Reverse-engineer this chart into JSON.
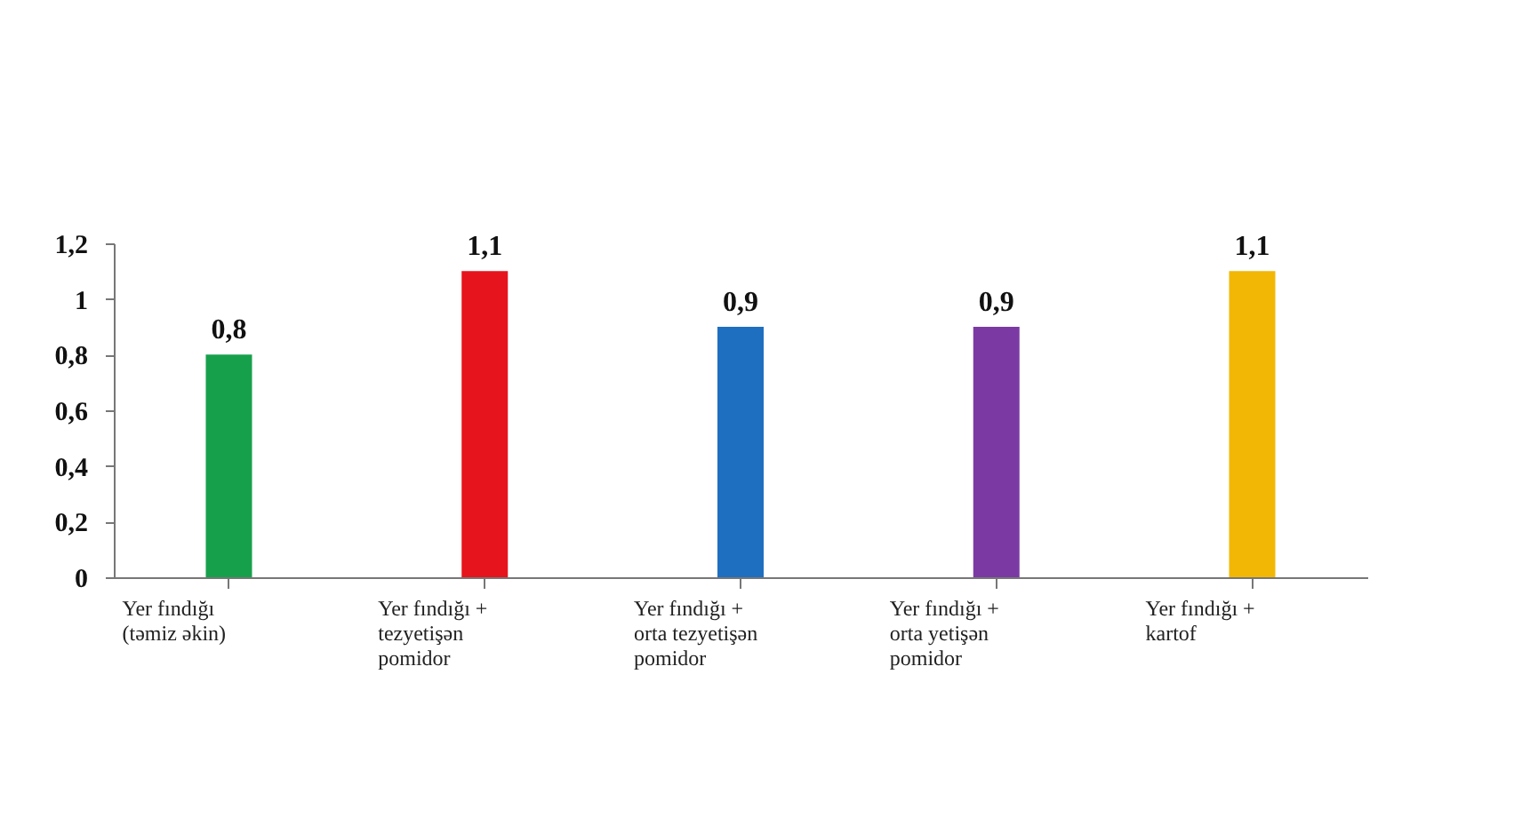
{
  "chart_data": {
    "type": "bar",
    "categories": [
      "Yer fındığı (təmiz əkin)",
      "Yer fındığı + tezyetişən pomidor",
      "Yer fındığı + orta tezyetişən pomidor",
      "Yer fındığı + orta yetişən pomidor",
      "Yer fındığı + kartof"
    ],
    "values": [
      0.8,
      1.1,
      0.9,
      0.9,
      1.1
    ],
    "value_labels": [
      "0,8",
      "1,1",
      "0,9",
      "0,9",
      "1,1"
    ],
    "colors": [
      "#17a04c",
      "#e6141c",
      "#1f6fc0",
      "#7b3aa3",
      "#f2b705"
    ],
    "ylim": [
      0,
      1.2
    ],
    "yticks": [
      0,
      {
        "value": 0.2,
        "label": "0,2"
      },
      {
        "value": 0.4,
        "label": "0,4"
      },
      {
        "value": 0.6,
        "label": "0,6"
      },
      {
        "value": 0.8,
        "label": "0,8"
      },
      1,
      {
        "value": 1.2,
        "label": "1,2"
      }
    ],
    "grid": false
  }
}
